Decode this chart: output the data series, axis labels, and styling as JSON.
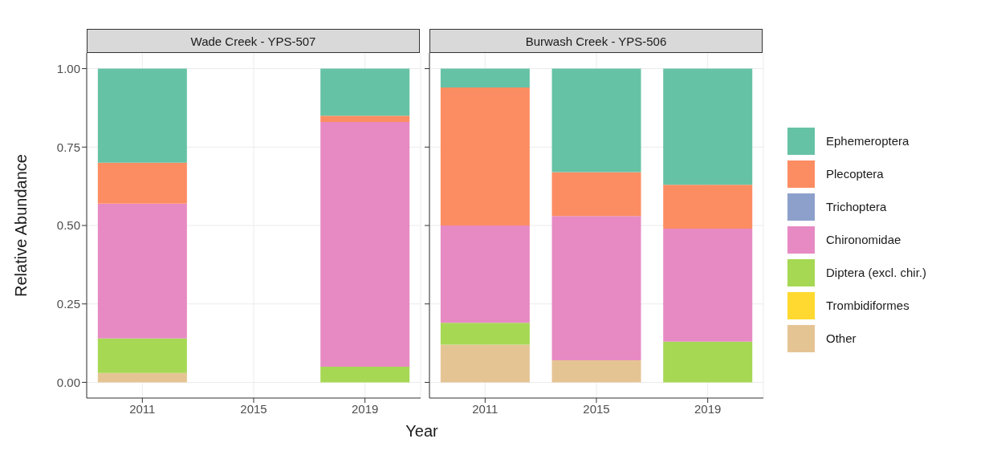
{
  "chart_data": [
    {
      "type": "bar",
      "title": "Wade Creek - YPS-507",
      "xlabel": "Year",
      "ylabel": "Relative Abundance",
      "categories": [
        "2011",
        "2015",
        "2019"
      ],
      "stacked": true,
      "ylim": [
        -0.05,
        1.05
      ],
      "yticks": [
        {
          "value": 0,
          "label": "0.00"
        },
        {
          "value": 0.25,
          "label": "0.25"
        },
        {
          "value": 0.5,
          "label": "0.50"
        },
        {
          "value": 0.75,
          "label": "0.75"
        },
        {
          "value": 1,
          "label": "1.00"
        }
      ],
      "grid": true,
      "legend": false,
      "series": [
        {
          "color": "#e5c494",
          "values": [
            0.03,
            null,
            null
          ]
        },
        {
          "color": "#a6d854",
          "values": [
            0.11,
            null,
            0.05
          ]
        },
        {
          "color": "#e78ac3",
          "values": [
            0.43,
            null,
            0.78
          ]
        },
        {
          "color": "#fc8d62",
          "values": [
            0.13,
            null,
            0.02
          ]
        },
        {
          "color": "#66c2a5",
          "values": [
            0.3,
            null,
            0.15
          ]
        }
      ]
    },
    {
      "type": "bar",
      "title": "Burwash Creek - YPS-506",
      "categories": [
        "2011",
        "2015",
        "2019"
      ],
      "stacked": true,
      "ylim": [
        -0.05,
        1.05
      ],
      "yticks": [
        {
          "value": 0,
          "label": null
        },
        {
          "value": 0.25,
          "label": null
        },
        {
          "value": 0.5,
          "label": null
        },
        {
          "value": 0.75,
          "label": null
        },
        {
          "value": 1,
          "label": null
        }
      ],
      "grid": true,
      "legend": "right",
      "tick_labels": "x",
      "series": [
        {
          "name": "Other",
          "color": "#e5c494",
          "values": [
            0.12,
            0.07,
            null
          ]
        },
        {
          "name": "Trombidiformes",
          "color": "#ffd92f",
          "values": [
            null,
            null,
            null
          ]
        },
        {
          "name": "Diptera (excl. chir.)",
          "color": "#a6d854",
          "values": [
            0.07,
            null,
            0.13
          ]
        },
        {
          "name": "Chironomidae",
          "color": "#e78ac3",
          "values": [
            0.31,
            0.46,
            0.36
          ]
        },
        {
          "name": "Trichoptera",
          "color": "#8da0cb",
          "values": [
            null,
            null,
            null
          ]
        },
        {
          "name": "Plecoptera",
          "color": "#fc8d62",
          "values": [
            0.44,
            0.14,
            0.14
          ]
        },
        {
          "name": "Ephemeroptera",
          "color": "#66c2a5",
          "values": [
            0.06,
            0.33,
            0.37
          ]
        }
      ]
    }
  ]
}
